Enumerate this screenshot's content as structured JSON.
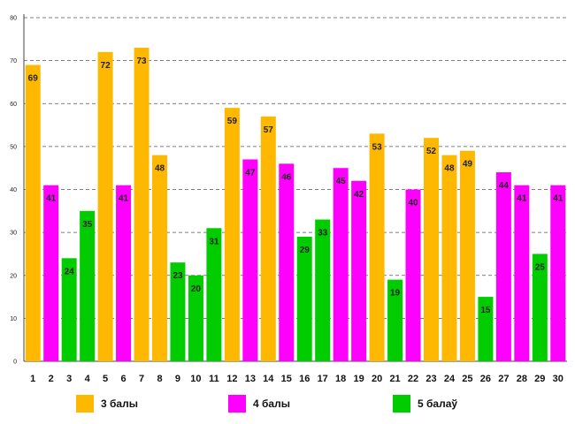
{
  "chart_data": {
    "type": "bar",
    "categories": [
      "1",
      "2",
      "3",
      "4",
      "5",
      "6",
      "7",
      "8",
      "9",
      "10",
      "11",
      "12",
      "13",
      "14",
      "15",
      "16",
      "17",
      "18",
      "19",
      "20",
      "21",
      "22",
      "23",
      "24",
      "25",
      "26",
      "27",
      "28",
      "29",
      "30"
    ],
    "values": [
      69,
      41,
      24,
      35,
      72,
      41,
      73,
      48,
      23,
      20,
      31,
      59,
      47,
      57,
      46,
      29,
      33,
      45,
      42,
      53,
      19,
      40,
      52,
      48,
      49,
      15,
      44,
      41,
      25,
      41
    ],
    "groups": [
      "3",
      "4",
      "5",
      "5",
      "3",
      "4",
      "3",
      "3",
      "5",
      "5",
      "5",
      "3",
      "4",
      "3",
      "4",
      "5",
      "5",
      "4",
      "4",
      "3",
      "5",
      "4",
      "3",
      "3",
      "3",
      "5",
      "4",
      "4",
      "5",
      "4"
    ],
    "ylim": [
      0,
      80
    ],
    "ytick_step": 10,
    "grid": true,
    "legend_position": "bottom",
    "title": "",
    "xlabel": "",
    "ylabel": "",
    "series": [
      {
        "key": "3",
        "name": "3 балы",
        "color": "#FFB800"
      },
      {
        "key": "4",
        "name": "4 балы",
        "color": "#FF00FF"
      },
      {
        "key": "5",
        "name": "5 балаў",
        "color": "#00CC00"
      }
    ]
  }
}
